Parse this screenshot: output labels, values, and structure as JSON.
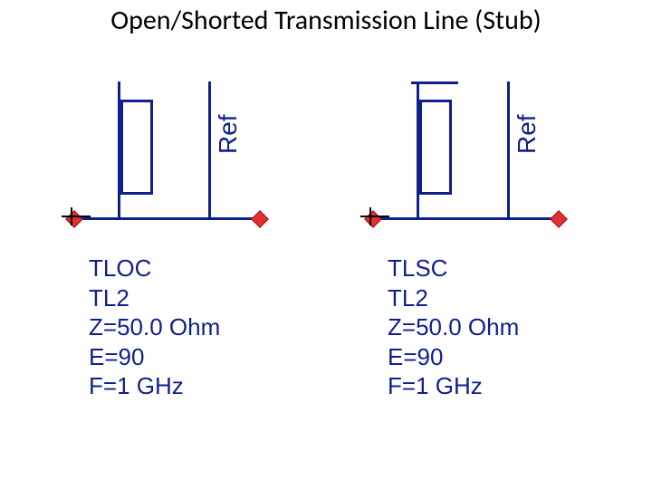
{
  "title": "Open/Shorted Transmission Line (Stub)",
  "ref_label": "Ref",
  "colors": {
    "schematic_line": "#0f1f8b",
    "text_param": "#0f1f8b",
    "title_text": "#000000",
    "background": "#ffffff",
    "port_fill": "#e03030",
    "port_border": "#a01010"
  },
  "typography": {
    "title_fontsize": 30,
    "param_fontsize": 26,
    "ref_fontsize": 28,
    "title_font": "Calibri",
    "param_font": "Arial"
  },
  "schematic": {
    "line_width": 3,
    "stub_rect": {
      "w": 36,
      "h": 105,
      "border": 3
    },
    "ref_label_rotation_deg": -90
  },
  "components": {
    "left": {
      "type": "open_stub",
      "name": "TLOC",
      "inst": "TL2",
      "z": "Z=50.0 Ohm",
      "e": "E=90",
      "f": "F=1 GHz",
      "has_short_bar": false
    },
    "right": {
      "type": "shorted_stub",
      "name": "TLSC",
      "inst": "TL2",
      "z": "Z=50.0 Ohm",
      "e": "E=90",
      "f": "F=1 GHz",
      "has_short_bar": true
    }
  }
}
